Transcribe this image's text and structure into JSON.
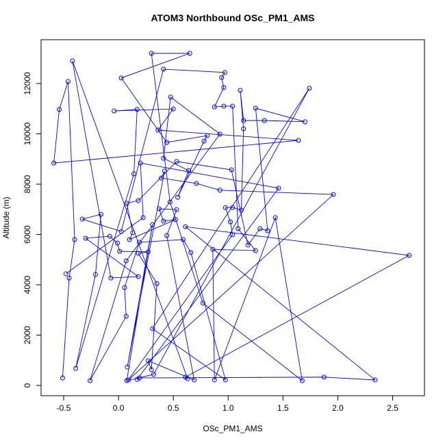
{
  "chart_data": {
    "type": "line",
    "title": "ATOM3 Northbound OSc_PM1_AMS",
    "x_label": "OSc_PM1_AMS",
    "y_label": "Altitude (m)",
    "series": [
      {
        "color": "#0000ff",
        "x": [
          -0.51,
          -0.45,
          -0.4,
          -0.46,
          -0.54,
          -0.59,
          1.64,
          0.36,
          0.5,
          -0.04,
          0.17,
          0.14,
          -0.39,
          -0.21,
          -0.16,
          -0.33,
          0.025,
          0.41,
          0.97,
          0.94,
          0.96,
          0.875,
          0.96,
          1.04,
          1.09,
          1.25,
          0.86,
          0.875,
          1.43,
          1.675,
          0.77,
          0.47,
          0.3,
          0.65,
          0.025,
          0.44,
          0.81,
          0.78,
          0.54,
          0.64,
          0.41,
          0.475,
          0.925,
          0.07,
          -0.26,
          0.07,
          0.055,
          0.19,
          0.59,
          0.66,
          0.975,
          0.31,
          1.74,
          0.32,
          0.075,
          0.31,
          0.08,
          0.42,
          0.39,
          0.71,
          0.925,
          1.96,
          0.09,
          1.04,
          1.02,
          0.975,
          1.04,
          1.12,
          1.14,
          1.11,
          1.14,
          1.33,
          1.7,
          1.25,
          1.36,
          1.29,
          1.18,
          1.03,
          0.53,
          0.18,
          0.075,
          0.13,
          0.1,
          0.52,
          0.41,
          0.37,
          0.53,
          0.44,
          0.69,
          0.27,
          0.3,
          0.35,
          0.18,
          0.27,
          0.01,
          -0.01,
          -0.08,
          -0.3,
          0.18,
          -0.07,
          -0.42,
          0.63,
          0.61,
          2.65,
          0.61,
          2.34,
          1.875,
          0.19,
          0.17,
          1.46,
          0.2,
          0.225,
          -0.48
        ],
        "values": [
          300,
          4270,
          5800,
          12080,
          10970,
          8840,
          9740,
          10150,
          10990,
          10910,
          10970,
          8410,
          680,
          4410,
          6800,
          6610,
          6120,
          12570,
          12440,
          12240,
          11840,
          11070,
          11100,
          11100,
          6230,
          5360,
          5410,
          220,
          6670,
          190,
          3270,
          7290,
          13200,
          13200,
          12220,
          9660,
          9930,
          9710,
          7480,
          8540,
          9030,
          11460,
          9990,
          4950,
          190,
          2750,
          3890,
          5690,
          5800,
          5280,
          220,
          2260,
          11810,
          440,
          190,
          6390,
          730,
          8520,
          8240,
          8030,
          7760,
          7590,
          220,
          5990,
          6500,
          7070,
          7070,
          6970,
          10200,
          11730,
          10530,
          10530,
          10480,
          11020,
          6150,
          6230,
          5580,
          8570,
          8900,
          7350,
          7240,
          6070,
          5800,
          6590,
          6530,
          7020,
          6990,
          5960,
          220,
          980,
          630,
          4050,
          5250,
          5310,
          5330,
          5660,
          5930,
          5850,
          4330,
          4270,
          12900,
          270,
          330,
          5170,
          6310,
          220,
          330,
          300,
          240,
          7840,
          8840,
          6670,
          4440
        ]
      }
    ],
    "xlim": [
      -0.706,
      2.79
    ],
    "ylim": [
      -408,
      13741
    ],
    "xticks": [
      -0.5,
      {
        "value": 0,
        "label": "0.0"
      },
      0.5,
      {
        "value": 1,
        "label": "1.0"
      },
      1.5,
      {
        "value": 2,
        "label": "2.0"
      },
      2.5
    ],
    "yticks": [
      0,
      2000,
      4000,
      6000,
      8000,
      10000,
      12000
    ]
  }
}
